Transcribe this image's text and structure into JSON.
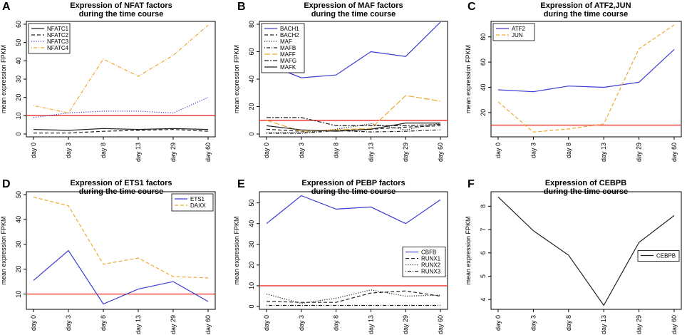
{
  "figure": {
    "ylabel": "mean expression FPKM"
  },
  "colors": {
    "black": "#222222",
    "blue": "#3b3bd6",
    "orange": "#f0a830",
    "red": "#ee3333",
    "axis": "#000000"
  },
  "chart_data": [
    {
      "letter": "A",
      "type": "line",
      "title": [
        "Expression of NFAT factors",
        "during the time course"
      ],
      "categories": [
        "day 0",
        "day 3",
        "day 8",
        "day 13",
        "day 29",
        "day 60"
      ],
      "ylim": [
        0,
        60
      ],
      "yticks": [
        0,
        10,
        20,
        30,
        40,
        50,
        60
      ],
      "hline": 10,
      "legend_position": "top-left",
      "series": [
        {
          "name": "NFATC1",
          "color": "black",
          "dash": "solid",
          "values": [
            2.5,
            2,
            3,
            2.5,
            3,
            2.5
          ]
        },
        {
          "name": "NFATC2",
          "color": "black",
          "dash": "dashed",
          "values": [
            0.5,
            0.5,
            1.5,
            2,
            2.5,
            1.5
          ]
        },
        {
          "name": "NFATC3",
          "color": "blue",
          "dash": "dotted",
          "values": [
            9,
            11.5,
            12.5,
            12.5,
            11.5,
            20
          ]
        },
        {
          "name": "NFATC4",
          "color": "orange",
          "dash": "dotdash",
          "values": [
            15.5,
            11.5,
            41,
            31.5,
            43,
            59.5
          ]
        }
      ]
    },
    {
      "letter": "B",
      "type": "line",
      "title": [
        "Expression of MAF factors",
        "during the time course"
      ],
      "categories": [
        "day 0",
        "day 3",
        "day 8",
        "day 13",
        "day 29",
        "day 60"
      ],
      "ylim": [
        0,
        80
      ],
      "yticks": [
        0,
        20,
        40,
        60,
        80
      ],
      "hline": 10,
      "legend_position": "top-left",
      "series": [
        {
          "name": "BACH1",
          "color": "blue",
          "dash": "solid",
          "values": [
            51,
            41,
            43,
            60,
            56.5,
            81.5
          ]
        },
        {
          "name": "BACH2",
          "color": "black",
          "dash": "dashed",
          "values": [
            3.5,
            2,
            2.5,
            3.5,
            5,
            6
          ]
        },
        {
          "name": "MAF",
          "color": "black",
          "dash": "dotted",
          "values": [
            1,
            1,
            3.5,
            7.5,
            3,
            8
          ]
        },
        {
          "name": "MAFB",
          "color": "black",
          "dash": "dotdash",
          "values": [
            0.5,
            0.5,
            2.5,
            1.5,
            2,
            3
          ]
        },
        {
          "name": "MAFF",
          "color": "orange",
          "dash": "longdash",
          "values": [
            10,
            2,
            3,
            4,
            28,
            24
          ]
        },
        {
          "name": "MAFG",
          "color": "black",
          "dash": "twodash",
          "values": [
            12,
            12,
            6,
            6,
            6,
            7
          ]
        },
        {
          "name": "MAFK",
          "color": "black",
          "dash": "solid",
          "values": [
            6,
            3,
            2,
            3.5,
            8,
            8
          ]
        }
      ]
    },
    {
      "letter": "C",
      "type": "line",
      "title": [
        "Expression of ATF2,JUN",
        "during the time course"
      ],
      "categories": [
        "day 0",
        "day 3",
        "day 8",
        "day 13",
        "day 29",
        "day 60"
      ],
      "ylim": [
        3,
        90
      ],
      "yticks": [
        20,
        40,
        60,
        80
      ],
      "hline": 10,
      "legend_position": "top-left",
      "series": [
        {
          "name": "ATF2",
          "color": "blue",
          "dash": "solid",
          "values": [
            38,
            36.5,
            41,
            40,
            44,
            70
          ]
        },
        {
          "name": "JUN",
          "color": "orange",
          "dash": "dashed",
          "values": [
            28.5,
            4.5,
            7,
            11,
            70.5,
            89.5
          ]
        }
      ]
    },
    {
      "letter": "D",
      "type": "line",
      "title": [
        "Expression of ETS1 factors",
        "during the time course"
      ],
      "categories": [
        "day 0",
        "day 3",
        "day 8",
        "day 13",
        "day 29",
        "day 60"
      ],
      "ylim": [
        5,
        50
      ],
      "yticks": [
        10,
        20,
        30,
        40,
        50
      ],
      "hline": 10,
      "legend_position": "top-right",
      "series": [
        {
          "name": "ETS1",
          "color": "blue",
          "dash": "solid",
          "values": [
            15.5,
            27.5,
            6,
            12,
            15,
            7
          ]
        },
        {
          "name": "DAXX",
          "color": "orange",
          "dash": "dashed",
          "values": [
            49,
            45.5,
            22,
            24.5,
            17,
            16.5
          ]
        }
      ]
    },
    {
      "letter": "E",
      "type": "line",
      "title": [
        "Expression of PEBP factors",
        "during the time course"
      ],
      "categories": [
        "day 0",
        "day 3",
        "day 8",
        "day 13",
        "day 29",
        "day 60"
      ],
      "ylim": [
        0,
        54
      ],
      "yticks": [
        0,
        10,
        20,
        30,
        40,
        50
      ],
      "hline": 10,
      "legend_position": "right",
      "series": [
        {
          "name": "CBFB",
          "color": "blue",
          "dash": "solid",
          "values": [
            40,
            53.5,
            47,
            48,
            40,
            51.5
          ]
        },
        {
          "name": "RUNX1",
          "color": "black",
          "dash": "dashed",
          "values": [
            2.5,
            2,
            2,
            6.5,
            7.5,
            5
          ]
        },
        {
          "name": "RUNX2",
          "color": "black",
          "dash": "dotted",
          "values": [
            6,
            1.5,
            4,
            8,
            5,
            5.5
          ]
        },
        {
          "name": "RUNX3",
          "color": "black",
          "dash": "dotdash",
          "values": [
            0.5,
            0.5,
            0.5,
            0.5,
            0.5,
            0.5
          ]
        }
      ]
    },
    {
      "letter": "F",
      "type": "line",
      "title": [
        "Expression of CEBPB",
        "during the time course"
      ],
      "categories": [
        "day 0",
        "day 3",
        "day 8",
        "day 13",
        "day 29",
        "day 60"
      ],
      "ylim": [
        3.7,
        8.5
      ],
      "yticks": [
        4,
        5,
        6,
        7,
        8
      ],
      "hline": null,
      "legend_position": "right",
      "series": [
        {
          "name": "CEBPB",
          "color": "black",
          "dash": "solid",
          "values": [
            8.4,
            6.95,
            5.9,
            3.75,
            6.45,
            7.6
          ]
        }
      ]
    }
  ]
}
